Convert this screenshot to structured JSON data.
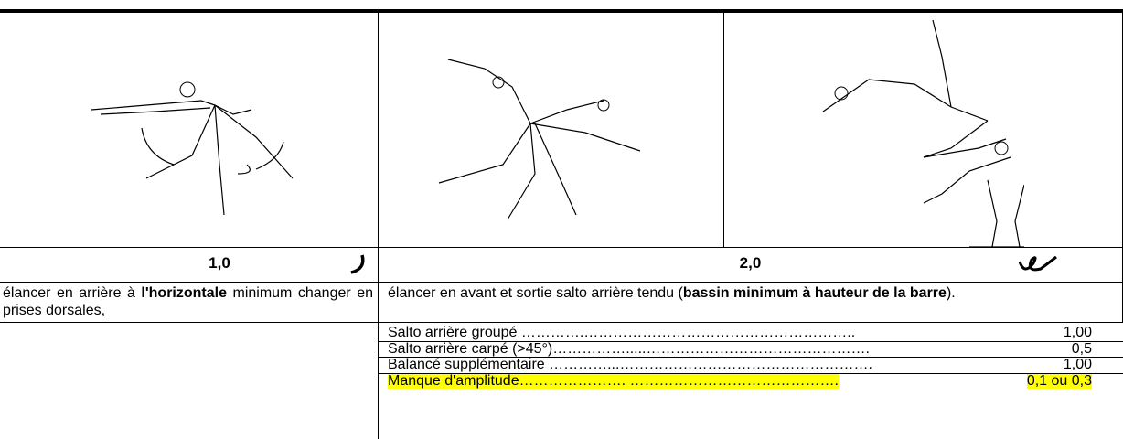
{
  "columns": [
    {
      "value": "1,0",
      "description": [
        {
          "text": "élancer en arrière à ",
          "bold": false
        },
        {
          "text": "l'horizontale",
          "bold": true
        },
        {
          "text": " minimum changer en prises dorsales,",
          "bold": false
        }
      ]
    },
    {
      "value": "2,0",
      "description": [
        {
          "text": "élancer en avant et sortie salto arrière tendu (",
          "bold": false
        },
        {
          "text": "bassin minimum à hauteur de la barre",
          "bold": true
        },
        {
          "text": ").",
          "bold": false
        }
      ],
      "deductions": [
        {
          "label": "Salto arrière groupé ………….………………………………………………..",
          "value": "1,00",
          "highlight": false
        },
        {
          "label": "Salto arrière carpé (>45°)…………….....……………………………………….",
          "value": "0,5",
          "highlight": false
        },
        {
          "label": "Balancé supplémentaire …………...…………………………………………….",
          "value": "1,00",
          "highlight": false
        },
        {
          "label": "Manque d'amplitude…………………. …………………………………….",
          "value": "0,1 ou 0,3",
          "highlight": true
        }
      ]
    }
  ]
}
